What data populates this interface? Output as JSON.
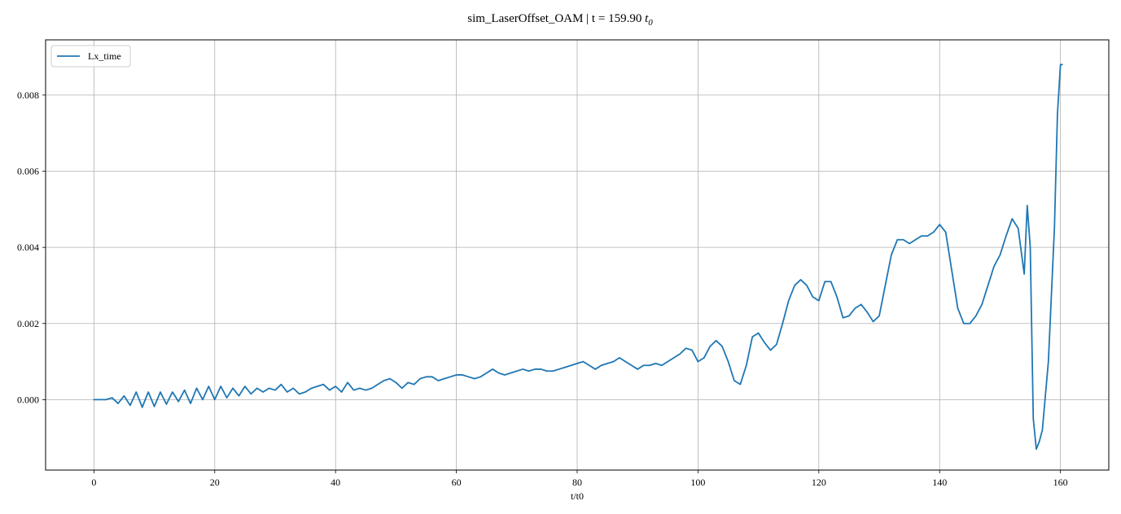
{
  "chart_data": {
    "type": "line",
    "title": {
      "main": "sim_LaserOffset_OAM | t = 159.90 ",
      "math_symbol": "t",
      "math_subscript": "0"
    },
    "xlabel": "t/t0",
    "ylabel": "",
    "xlim": [
      -8,
      168
    ],
    "ylim": [
      -0.00185,
      0.00945
    ],
    "xticks": [
      0,
      20,
      40,
      60,
      80,
      100,
      120,
      140,
      160
    ],
    "yticks": [
      0.0,
      0.002,
      0.004,
      0.006,
      0.008
    ],
    "ytick_labels": [
      "0.000",
      "0.002",
      "0.004",
      "0.006",
      "0.008"
    ],
    "grid": true,
    "legend_position": "top-left",
    "series": [
      {
        "name": "Lx_time",
        "color": "#1f77b4",
        "points": [
          [
            0,
            0.0
          ],
          [
            2,
            0.0
          ],
          [
            3,
            5e-05
          ],
          [
            4,
            -0.0001
          ],
          [
            5,
            0.0001
          ],
          [
            6,
            -0.00015
          ],
          [
            7,
            0.0002
          ],
          [
            8,
            -0.0002
          ],
          [
            9,
            0.0002
          ],
          [
            10,
            -0.00018
          ],
          [
            11,
            0.0002
          ],
          [
            12,
            -0.00012
          ],
          [
            13,
            0.0002
          ],
          [
            14,
            -5e-05
          ],
          [
            15,
            0.00025
          ],
          [
            16,
            -0.0001
          ],
          [
            17,
            0.0003
          ],
          [
            18,
            0.0
          ],
          [
            19,
            0.00035
          ],
          [
            20,
            0.0
          ],
          [
            21,
            0.00035
          ],
          [
            22,
            5e-05
          ],
          [
            23,
            0.0003
          ],
          [
            24,
            0.0001
          ],
          [
            25,
            0.00035
          ],
          [
            26,
            0.00015
          ],
          [
            27,
            0.0003
          ],
          [
            28,
            0.0002
          ],
          [
            29,
            0.0003
          ],
          [
            30,
            0.00025
          ],
          [
            31,
            0.0004
          ],
          [
            32,
            0.0002
          ],
          [
            33,
            0.0003
          ],
          [
            34,
            0.00015
          ],
          [
            35,
            0.0002
          ],
          [
            36,
            0.0003
          ],
          [
            37,
            0.00035
          ],
          [
            38,
            0.0004
          ],
          [
            39,
            0.00025
          ],
          [
            40,
            0.00035
          ],
          [
            41,
            0.0002
          ],
          [
            42,
            0.00045
          ],
          [
            43,
            0.00025
          ],
          [
            44,
            0.0003
          ],
          [
            45,
            0.00025
          ],
          [
            46,
            0.0003
          ],
          [
            47,
            0.0004
          ],
          [
            48,
            0.0005
          ],
          [
            49,
            0.00055
          ],
          [
            50,
            0.00045
          ],
          [
            51,
            0.0003
          ],
          [
            52,
            0.00045
          ],
          [
            53,
            0.0004
          ],
          [
            54,
            0.00055
          ],
          [
            55,
            0.0006
          ],
          [
            56,
            0.0006
          ],
          [
            57,
            0.0005
          ],
          [
            58,
            0.00055
          ],
          [
            59,
            0.0006
          ],
          [
            60,
            0.00065
          ],
          [
            61,
            0.00065
          ],
          [
            62,
            0.0006
          ],
          [
            63,
            0.00055
          ],
          [
            64,
            0.0006
          ],
          [
            65,
            0.0007
          ],
          [
            66,
            0.0008
          ],
          [
            67,
            0.0007
          ],
          [
            68,
            0.00065
          ],
          [
            69,
            0.0007
          ],
          [
            70,
            0.00075
          ],
          [
            71,
            0.0008
          ],
          [
            72,
            0.00075
          ],
          [
            73,
            0.0008
          ],
          [
            74,
            0.0008
          ],
          [
            75,
            0.00075
          ],
          [
            76,
            0.00075
          ],
          [
            77,
            0.0008
          ],
          [
            78,
            0.00085
          ],
          [
            79,
            0.0009
          ],
          [
            80,
            0.00095
          ],
          [
            81,
            0.001
          ],
          [
            82,
            0.0009
          ],
          [
            83,
            0.0008
          ],
          [
            84,
            0.0009
          ],
          [
            85,
            0.00095
          ],
          [
            86,
            0.001
          ],
          [
            87,
            0.0011
          ],
          [
            88,
            0.001
          ],
          [
            89,
            0.0009
          ],
          [
            90,
            0.0008
          ],
          [
            91,
            0.0009
          ],
          [
            92,
            0.0009
          ],
          [
            93,
            0.00095
          ],
          [
            94,
            0.0009
          ],
          [
            95,
            0.001
          ],
          [
            96,
            0.0011
          ],
          [
            97,
            0.0012
          ],
          [
            98,
            0.00135
          ],
          [
            99,
            0.0013
          ],
          [
            100,
            0.001
          ],
          [
            101,
            0.0011
          ],
          [
            102,
            0.0014
          ],
          [
            103,
            0.00155
          ],
          [
            104,
            0.0014
          ],
          [
            105,
            0.001
          ],
          [
            106,
            0.0005
          ],
          [
            107,
            0.0004
          ],
          [
            108,
            0.0009
          ],
          [
            109,
            0.00165
          ],
          [
            110,
            0.00175
          ],
          [
            111,
            0.0015
          ],
          [
            112,
            0.0013
          ],
          [
            113,
            0.00145
          ],
          [
            114,
            0.002
          ],
          [
            115,
            0.0026
          ],
          [
            116,
            0.003
          ],
          [
            117,
            0.00315
          ],
          [
            118,
            0.003
          ],
          [
            119,
            0.0027
          ],
          [
            120,
            0.0026
          ],
          [
            121,
            0.0031
          ],
          [
            122,
            0.0031
          ],
          [
            123,
            0.0027
          ],
          [
            124,
            0.00215
          ],
          [
            125,
            0.0022
          ],
          [
            126,
            0.0024
          ],
          [
            127,
            0.0025
          ],
          [
            128,
            0.0023
          ],
          [
            129,
            0.00205
          ],
          [
            130,
            0.0022
          ],
          [
            131,
            0.003
          ],
          [
            132,
            0.0038
          ],
          [
            133,
            0.0042
          ],
          [
            134,
            0.0042
          ],
          [
            135,
            0.0041
          ],
          [
            136,
            0.0042
          ],
          [
            137,
            0.0043
          ],
          [
            138,
            0.0043
          ],
          [
            139,
            0.0044
          ],
          [
            140,
            0.0046
          ],
          [
            141,
            0.0044
          ],
          [
            142,
            0.0034
          ],
          [
            143,
            0.0024
          ],
          [
            144,
            0.002
          ],
          [
            145,
            0.002
          ],
          [
            146,
            0.0022
          ],
          [
            147,
            0.0025
          ],
          [
            148,
            0.003
          ],
          [
            149,
            0.0035
          ],
          [
            150,
            0.0038
          ],
          [
            151,
            0.0043
          ],
          [
            152,
            0.00475
          ],
          [
            153,
            0.0045
          ],
          [
            154,
            0.0033
          ],
          [
            154.5,
            0.0051
          ],
          [
            155,
            0.004
          ],
          [
            155.5,
            -0.0005
          ],
          [
            156,
            -0.0013
          ],
          [
            156.5,
            -0.0011
          ],
          [
            157,
            -0.0008
          ],
          [
            158,
            0.001
          ],
          [
            159,
            0.0045
          ],
          [
            159.5,
            0.0075
          ],
          [
            160,
            0.0088
          ],
          [
            160.3,
            0.0088
          ]
        ]
      }
    ]
  }
}
